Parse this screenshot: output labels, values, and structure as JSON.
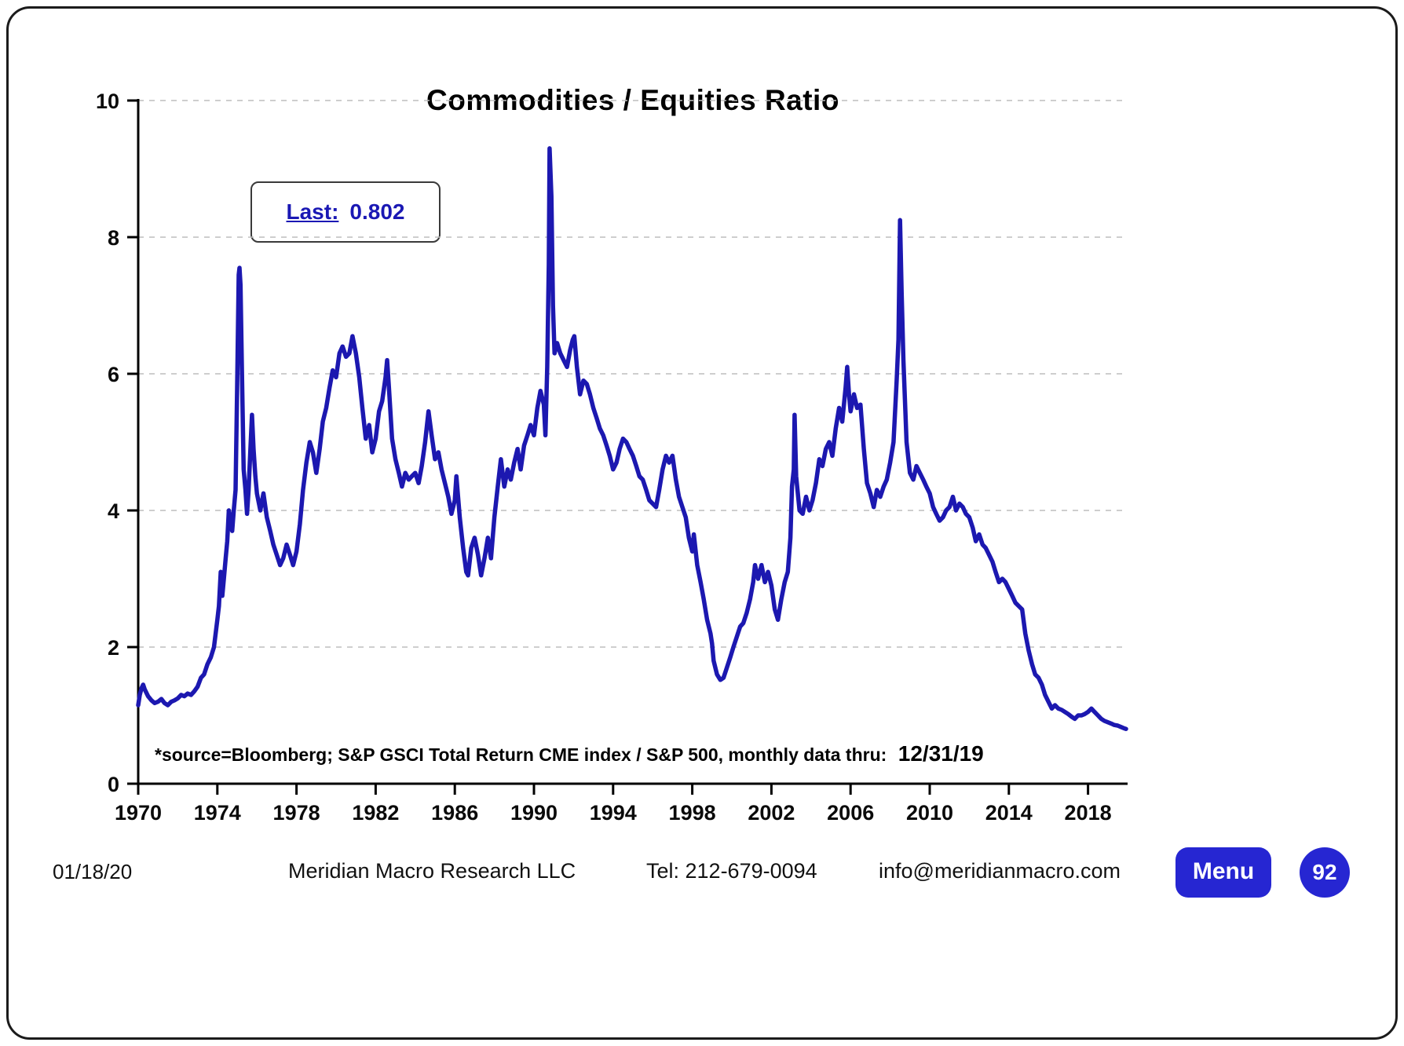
{
  "colors": {
    "line": "#1c18b0",
    "accent": "#2626d2",
    "last_text": "#1a18b4"
  },
  "chart": {
    "title": "Commodities / Equities Ratio",
    "last_label": "Last:",
    "last_value": "0.802",
    "source_text": "*source=Bloomberg;  S&P GSCI Total Return CME index / S&P 500,  monthly data thru:",
    "source_date": "12/31/19"
  },
  "footer": {
    "date": "01/18/20",
    "company": "Meridian Macro Research  LLC",
    "phone": "Tel: 212-679-0094",
    "email": "info@meridianmacro.com",
    "menu_label": "Menu",
    "page_number": "92"
  },
  "chart_data": {
    "type": "line",
    "title": "Commodities / Equities Ratio",
    "series_name": "S&P GSCI Total Return CME index / S&P 500 (monthly)",
    "xlabel": "",
    "ylabel": "",
    "xlim": [
      1970,
      2020
    ],
    "ylim": [
      0,
      10
    ],
    "x_ticks": [
      1970,
      1974,
      1978,
      1982,
      1986,
      1990,
      1994,
      1998,
      2002,
      2006,
      2010,
      2014,
      2018
    ],
    "y_ticks": [
      0,
      2,
      4,
      6,
      8,
      10
    ],
    "grid": "horizontal-dashed",
    "legend": "none",
    "last_value": 0.802,
    "points": [
      [
        1970.0,
        1.15
      ],
      [
        1970.08,
        1.3
      ],
      [
        1970.17,
        1.4
      ],
      [
        1970.25,
        1.45
      ],
      [
        1970.33,
        1.38
      ],
      [
        1970.5,
        1.28
      ],
      [
        1970.67,
        1.22
      ],
      [
        1970.83,
        1.18
      ],
      [
        1971.0,
        1.2
      ],
      [
        1971.17,
        1.24
      ],
      [
        1971.33,
        1.18
      ],
      [
        1971.5,
        1.15
      ],
      [
        1971.67,
        1.2
      ],
      [
        1971.83,
        1.22
      ],
      [
        1972.0,
        1.25
      ],
      [
        1972.17,
        1.3
      ],
      [
        1972.33,
        1.28
      ],
      [
        1972.5,
        1.32
      ],
      [
        1972.67,
        1.3
      ],
      [
        1972.83,
        1.35
      ],
      [
        1973.0,
        1.42
      ],
      [
        1973.17,
        1.55
      ],
      [
        1973.33,
        1.6
      ],
      [
        1973.5,
        1.75
      ],
      [
        1973.67,
        1.85
      ],
      [
        1973.83,
        2.0
      ],
      [
        1974.0,
        2.4
      ],
      [
        1974.08,
        2.6
      ],
      [
        1974.17,
        3.1
      ],
      [
        1974.25,
        2.75
      ],
      [
        1974.33,
        3.0
      ],
      [
        1974.42,
        3.3
      ],
      [
        1974.5,
        3.55
      ],
      [
        1974.58,
        4.0
      ],
      [
        1974.67,
        3.85
      ],
      [
        1974.75,
        3.7
      ],
      [
        1974.83,
        4.0
      ],
      [
        1974.92,
        4.3
      ],
      [
        1975.0,
        5.8
      ],
      [
        1975.08,
        7.45
      ],
      [
        1975.12,
        7.55
      ],
      [
        1975.17,
        7.3
      ],
      [
        1975.25,
        5.9
      ],
      [
        1975.33,
        4.6
      ],
      [
        1975.42,
        4.3
      ],
      [
        1975.5,
        3.95
      ],
      [
        1975.58,
        4.3
      ],
      [
        1975.67,
        4.9
      ],
      [
        1975.75,
        5.4
      ],
      [
        1975.83,
        4.9
      ],
      [
        1975.92,
        4.5
      ],
      [
        1976.0,
        4.25
      ],
      [
        1976.17,
        4.0
      ],
      [
        1976.33,
        4.25
      ],
      [
        1976.5,
        3.9
      ],
      [
        1976.67,
        3.7
      ],
      [
        1976.83,
        3.5
      ],
      [
        1977.0,
        3.35
      ],
      [
        1977.17,
        3.2
      ],
      [
        1977.33,
        3.3
      ],
      [
        1977.5,
        3.5
      ],
      [
        1977.67,
        3.35
      ],
      [
        1977.83,
        3.2
      ],
      [
        1978.0,
        3.4
      ],
      [
        1978.17,
        3.8
      ],
      [
        1978.33,
        4.3
      ],
      [
        1978.5,
        4.7
      ],
      [
        1978.67,
        5.0
      ],
      [
        1978.83,
        4.85
      ],
      [
        1979.0,
        4.55
      ],
      [
        1979.17,
        4.9
      ],
      [
        1979.33,
        5.3
      ],
      [
        1979.5,
        5.5
      ],
      [
        1979.67,
        5.8
      ],
      [
        1979.83,
        6.05
      ],
      [
        1980.0,
        5.95
      ],
      [
        1980.17,
        6.3
      ],
      [
        1980.33,
        6.4
      ],
      [
        1980.5,
        6.25
      ],
      [
        1980.67,
        6.3
      ],
      [
        1980.83,
        6.55
      ],
      [
        1981.0,
        6.3
      ],
      [
        1981.17,
        5.95
      ],
      [
        1981.33,
        5.5
      ],
      [
        1981.5,
        5.05
      ],
      [
        1981.67,
        5.25
      ],
      [
        1981.83,
        4.85
      ],
      [
        1982.0,
        5.05
      ],
      [
        1982.17,
        5.45
      ],
      [
        1982.33,
        5.6
      ],
      [
        1982.5,
        5.95
      ],
      [
        1982.58,
        6.2
      ],
      [
        1982.67,
        5.8
      ],
      [
        1982.83,
        5.05
      ],
      [
        1983.0,
        4.75
      ],
      [
        1983.17,
        4.55
      ],
      [
        1983.33,
        4.35
      ],
      [
        1983.5,
        4.55
      ],
      [
        1983.67,
        4.45
      ],
      [
        1983.83,
        4.5
      ],
      [
        1984.0,
        4.55
      ],
      [
        1984.17,
        4.4
      ],
      [
        1984.33,
        4.65
      ],
      [
        1984.5,
        5.0
      ],
      [
        1984.67,
        5.45
      ],
      [
        1984.83,
        5.1
      ],
      [
        1985.0,
        4.75
      ],
      [
        1985.17,
        4.85
      ],
      [
        1985.33,
        4.6
      ],
      [
        1985.5,
        4.4
      ],
      [
        1985.67,
        4.2
      ],
      [
        1985.83,
        3.95
      ],
      [
        1986.0,
        4.15
      ],
      [
        1986.08,
        4.5
      ],
      [
        1986.25,
        3.9
      ],
      [
        1986.42,
        3.45
      ],
      [
        1986.58,
        3.1
      ],
      [
        1986.67,
        3.05
      ],
      [
        1986.83,
        3.45
      ],
      [
        1987.0,
        3.6
      ],
      [
        1987.17,
        3.35
      ],
      [
        1987.33,
        3.05
      ],
      [
        1987.5,
        3.3
      ],
      [
        1987.67,
        3.6
      ],
      [
        1987.83,
        3.3
      ],
      [
        1988.0,
        3.9
      ],
      [
        1988.17,
        4.35
      ],
      [
        1988.33,
        4.75
      ],
      [
        1988.5,
        4.35
      ],
      [
        1988.67,
        4.6
      ],
      [
        1988.83,
        4.45
      ],
      [
        1989.0,
        4.7
      ],
      [
        1989.17,
        4.9
      ],
      [
        1989.33,
        4.6
      ],
      [
        1989.5,
        4.95
      ],
      [
        1989.67,
        5.1
      ],
      [
        1989.83,
        5.25
      ],
      [
        1990.0,
        5.1
      ],
      [
        1990.17,
        5.5
      ],
      [
        1990.33,
        5.75
      ],
      [
        1990.5,
        5.55
      ],
      [
        1990.58,
        5.1
      ],
      [
        1990.67,
        6.1
      ],
      [
        1990.75,
        7.6
      ],
      [
        1990.79,
        9.3
      ],
      [
        1990.88,
        8.6
      ],
      [
        1990.96,
        7.0
      ],
      [
        1991.04,
        6.3
      ],
      [
        1991.17,
        6.45
      ],
      [
        1991.33,
        6.3
      ],
      [
        1991.5,
        6.2
      ],
      [
        1991.67,
        6.1
      ],
      [
        1991.83,
        6.35
      ],
      [
        1991.96,
        6.5
      ],
      [
        1992.04,
        6.55
      ],
      [
        1992.17,
        6.1
      ],
      [
        1992.33,
        5.7
      ],
      [
        1992.5,
        5.9
      ],
      [
        1992.67,
        5.85
      ],
      [
        1992.83,
        5.7
      ],
      [
        1993.0,
        5.5
      ],
      [
        1993.17,
        5.35
      ],
      [
        1993.33,
        5.2
      ],
      [
        1993.5,
        5.1
      ],
      [
        1993.67,
        4.95
      ],
      [
        1993.83,
        4.8
      ],
      [
        1994.0,
        4.6
      ],
      [
        1994.17,
        4.7
      ],
      [
        1994.33,
        4.9
      ],
      [
        1994.5,
        5.05
      ],
      [
        1994.67,
        5.0
      ],
      [
        1994.83,
        4.9
      ],
      [
        1995.0,
        4.8
      ],
      [
        1995.17,
        4.65
      ],
      [
        1995.33,
        4.5
      ],
      [
        1995.5,
        4.45
      ],
      [
        1995.67,
        4.3
      ],
      [
        1995.83,
        4.15
      ],
      [
        1996.0,
        4.1
      ],
      [
        1996.17,
        4.05
      ],
      [
        1996.33,
        4.3
      ],
      [
        1996.5,
        4.6
      ],
      [
        1996.67,
        4.8
      ],
      [
        1996.83,
        4.7
      ],
      [
        1997.0,
        4.8
      ],
      [
        1997.17,
        4.45
      ],
      [
        1997.33,
        4.2
      ],
      [
        1997.5,
        4.05
      ],
      [
        1997.67,
        3.9
      ],
      [
        1997.83,
        3.6
      ],
      [
        1998.0,
        3.4
      ],
      [
        1998.08,
        3.65
      ],
      [
        1998.25,
        3.2
      ],
      [
        1998.42,
        2.95
      ],
      [
        1998.58,
        2.7
      ],
      [
        1998.75,
        2.4
      ],
      [
        1998.92,
        2.2
      ],
      [
        1999.0,
        2.05
      ],
      [
        1999.08,
        1.8
      ],
      [
        1999.25,
        1.6
      ],
      [
        1999.42,
        1.52
      ],
      [
        1999.58,
        1.55
      ],
      [
        1999.75,
        1.7
      ],
      [
        1999.92,
        1.85
      ],
      [
        2000.08,
        2.0
      ],
      [
        2000.25,
        2.15
      ],
      [
        2000.42,
        2.3
      ],
      [
        2000.58,
        2.35
      ],
      [
        2000.75,
        2.5
      ],
      [
        2000.92,
        2.7
      ],
      [
        2001.08,
        2.95
      ],
      [
        2001.17,
        3.2
      ],
      [
        2001.33,
        3.0
      ],
      [
        2001.5,
        3.2
      ],
      [
        2001.67,
        2.95
      ],
      [
        2001.83,
        3.1
      ],
      [
        2002.0,
        2.9
      ],
      [
        2002.17,
        2.55
      ],
      [
        2002.33,
        2.4
      ],
      [
        2002.5,
        2.7
      ],
      [
        2002.67,
        2.95
      ],
      [
        2002.83,
        3.1
      ],
      [
        2002.96,
        3.6
      ],
      [
        2003.04,
        4.35
      ],
      [
        2003.13,
        4.6
      ],
      [
        2003.17,
        5.4
      ],
      [
        2003.25,
        4.5
      ],
      [
        2003.42,
        4.0
      ],
      [
        2003.58,
        3.95
      ],
      [
        2003.75,
        4.2
      ],
      [
        2003.92,
        4.0
      ],
      [
        2004.08,
        4.15
      ],
      [
        2004.25,
        4.4
      ],
      [
        2004.42,
        4.75
      ],
      [
        2004.58,
        4.65
      ],
      [
        2004.75,
        4.9
      ],
      [
        2004.92,
        5.0
      ],
      [
        2005.08,
        4.8
      ],
      [
        2005.25,
        5.2
      ],
      [
        2005.42,
        5.5
      ],
      [
        2005.58,
        5.3
      ],
      [
        2005.75,
        5.8
      ],
      [
        2005.83,
        6.1
      ],
      [
        2005.92,
        5.7
      ],
      [
        2006.0,
        5.45
      ],
      [
        2006.17,
        5.7
      ],
      [
        2006.33,
        5.5
      ],
      [
        2006.5,
        5.55
      ],
      [
        2006.67,
        4.9
      ],
      [
        2006.83,
        4.4
      ],
      [
        2007.0,
        4.25
      ],
      [
        2007.17,
        4.05
      ],
      [
        2007.33,
        4.3
      ],
      [
        2007.5,
        4.2
      ],
      [
        2007.67,
        4.35
      ],
      [
        2007.83,
        4.45
      ],
      [
        2008.0,
        4.7
      ],
      [
        2008.17,
        5.0
      ],
      [
        2008.33,
        5.9
      ],
      [
        2008.42,
        6.5
      ],
      [
        2008.5,
        8.25
      ],
      [
        2008.58,
        7.2
      ],
      [
        2008.67,
        6.2
      ],
      [
        2008.83,
        5.0
      ],
      [
        2009.0,
        4.55
      ],
      [
        2009.17,
        4.45
      ],
      [
        2009.33,
        4.65
      ],
      [
        2009.5,
        4.55
      ],
      [
        2009.67,
        4.45
      ],
      [
        2009.83,
        4.35
      ],
      [
        2010.0,
        4.25
      ],
      [
        2010.17,
        4.05
      ],
      [
        2010.33,
        3.95
      ],
      [
        2010.5,
        3.85
      ],
      [
        2010.67,
        3.9
      ],
      [
        2010.83,
        4.0
      ],
      [
        2011.0,
        4.05
      ],
      [
        2011.17,
        4.2
      ],
      [
        2011.33,
        4.0
      ],
      [
        2011.5,
        4.1
      ],
      [
        2011.67,
        4.05
      ],
      [
        2011.83,
        3.95
      ],
      [
        2012.0,
        3.9
      ],
      [
        2012.17,
        3.75
      ],
      [
        2012.33,
        3.55
      ],
      [
        2012.5,
        3.65
      ],
      [
        2012.67,
        3.5
      ],
      [
        2012.83,
        3.45
      ],
      [
        2013.0,
        3.35
      ],
      [
        2013.17,
        3.25
      ],
      [
        2013.33,
        3.1
      ],
      [
        2013.5,
        2.95
      ],
      [
        2013.67,
        3.0
      ],
      [
        2013.83,
        2.95
      ],
      [
        2014.0,
        2.85
      ],
      [
        2014.17,
        2.75
      ],
      [
        2014.33,
        2.65
      ],
      [
        2014.5,
        2.6
      ],
      [
        2014.67,
        2.55
      ],
      [
        2014.83,
        2.2
      ],
      [
        2015.0,
        1.95
      ],
      [
        2015.17,
        1.75
      ],
      [
        2015.33,
        1.6
      ],
      [
        2015.5,
        1.55
      ],
      [
        2015.67,
        1.45
      ],
      [
        2015.83,
        1.3
      ],
      [
        2016.0,
        1.2
      ],
      [
        2016.17,
        1.1
      ],
      [
        2016.33,
        1.15
      ],
      [
        2016.5,
        1.1
      ],
      [
        2016.67,
        1.08
      ],
      [
        2016.83,
        1.05
      ],
      [
        2017.0,
        1.02
      ],
      [
        2017.17,
        0.98
      ],
      [
        2017.33,
        0.95
      ],
      [
        2017.5,
        1.0
      ],
      [
        2017.67,
        1.0
      ],
      [
        2017.83,
        1.02
      ],
      [
        2018.0,
        1.05
      ],
      [
        2018.17,
        1.1
      ],
      [
        2018.33,
        1.05
      ],
      [
        2018.5,
        1.0
      ],
      [
        2018.67,
        0.95
      ],
      [
        2018.83,
        0.92
      ],
      [
        2019.0,
        0.9
      ],
      [
        2019.17,
        0.88
      ],
      [
        2019.33,
        0.86
      ],
      [
        2019.5,
        0.85
      ],
      [
        2019.67,
        0.83
      ],
      [
        2019.83,
        0.81
      ],
      [
        2019.92,
        0.802
      ]
    ]
  }
}
